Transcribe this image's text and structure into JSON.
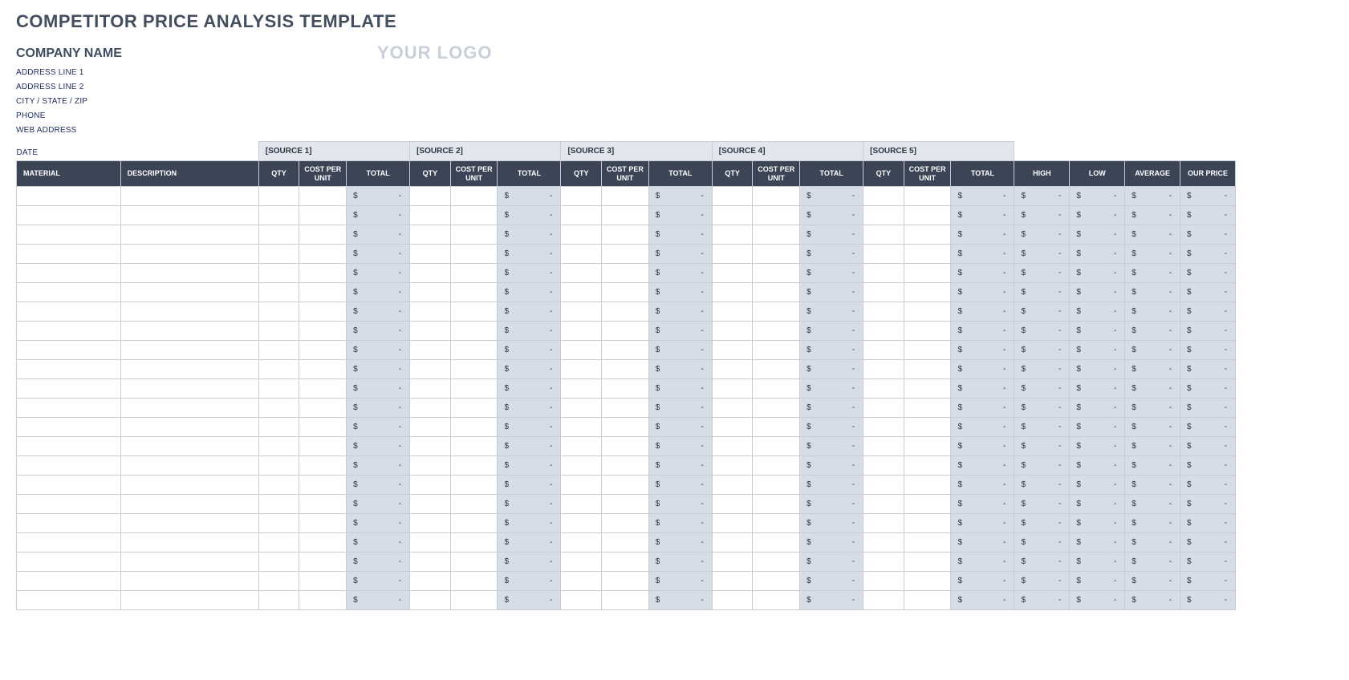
{
  "title": "COMPETITOR PRICE ANALYSIS TEMPLATE",
  "company": {
    "name_label": "COMPANY NAME",
    "address1": "ADDRESS LINE 1",
    "address2": "ADDRESS LINE 2",
    "city_state_zip": "CITY / STATE / ZIP",
    "phone": "PHONE",
    "web": "WEB ADDRESS",
    "date": "DATE"
  },
  "logo_placeholder": "YOUR LOGO",
  "columns": {
    "material": "MATERIAL",
    "description": "DESCRIPTION",
    "qty": "QTY",
    "cost_per_unit": "COST PER UNIT",
    "total": "TOTAL",
    "high": "HIGH",
    "low": "LOW",
    "average": "AVERAGE",
    "our_price": "OUR PRICE"
  },
  "sources": [
    {
      "label": "[SOURCE 1]"
    },
    {
      "label": "[SOURCE 2]"
    },
    {
      "label": "[SOURCE 3]"
    },
    {
      "label": "[SOURCE 4]"
    },
    {
      "label": "[SOURCE 5]"
    }
  ],
  "row_count": 22,
  "currency_symbol": "$",
  "empty_value": "-",
  "colors": {
    "title_text": "#434e5f",
    "meta_text": "#1e2b5b",
    "logo_text": "#c8cfd9",
    "header_dark_bg": "#3b4556",
    "header_dark_text": "#ffffff",
    "source_header_bg": "#e2e7ee",
    "calc_cell_bg": "#d7dde6",
    "body_cell_bg": "#ffffff",
    "grid_border": "#c9cdd3"
  }
}
